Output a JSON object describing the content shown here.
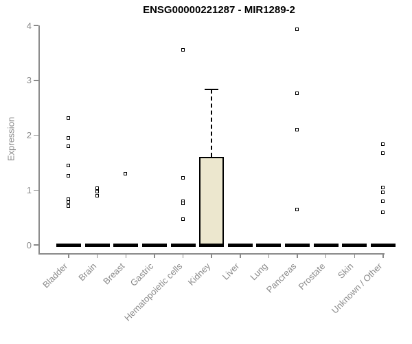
{
  "title": "ENSG00000221287 - MIR1289-2",
  "style": {
    "axis_color": "#8a8a8a",
    "label_color": "#8a8a8a",
    "title_color": "#000000",
    "box_fill": "#ece7ce",
    "box_border": "#000000",
    "point_color": "#000000",
    "background": "#ffffff"
  },
  "chart_data": {
    "type": "boxplot",
    "title": "ENSG00000221287 - MIR1289-2",
    "xlabel": "",
    "ylabel": "Expression",
    "ylim": [
      0,
      4
    ],
    "yticks": [
      0,
      1,
      2,
      3,
      4
    ],
    "grid": false,
    "legend": false,
    "categories": [
      "Bladder",
      "Brain",
      "Breast",
      "Gastric",
      "Hematopoietic cells",
      "Kidney",
      "Liver",
      "Lung",
      "Pancreas",
      "Prostate",
      "Skin",
      "Unknown / Other"
    ],
    "series": [
      {
        "category": "Bladder",
        "box": {
          "low": 0,
          "q1": 0,
          "median": 0,
          "q3": 0,
          "high": 0
        },
        "points": [
          2.31,
          1.94,
          1.79,
          1.44,
          1.25,
          0.83,
          0.78,
          0.7
        ]
      },
      {
        "category": "Brain",
        "box": {
          "low": 0,
          "q1": 0,
          "median": 0,
          "q3": 0,
          "high": 0
        },
        "points": [
          1.03,
          0.97,
          0.89
        ]
      },
      {
        "category": "Breast",
        "box": {
          "low": 0,
          "q1": 0,
          "median": 0,
          "q3": 0,
          "high": 0
        },
        "points": [
          1.29
        ]
      },
      {
        "category": "Gastric",
        "box": {
          "low": 0,
          "q1": 0,
          "median": 0,
          "q3": 0,
          "high": 0
        },
        "points": []
      },
      {
        "category": "Hematopoietic cells",
        "box": {
          "low": 0,
          "q1": 0,
          "median": 0,
          "q3": 0,
          "high": 0
        },
        "points": [
          3.55,
          1.22,
          0.79,
          0.75,
          0.46
        ]
      },
      {
        "category": "Kidney",
        "box": {
          "low": 0,
          "q1": 0,
          "median": 0,
          "q3": 1.61,
          "high": 2.83
        },
        "points": []
      },
      {
        "category": "Liver",
        "box": {
          "low": 0,
          "q1": 0,
          "median": 0,
          "q3": 0,
          "high": 0
        },
        "points": []
      },
      {
        "category": "Lung",
        "box": {
          "low": 0,
          "q1": 0,
          "median": 0,
          "q3": 0,
          "high": 0
        },
        "points": []
      },
      {
        "category": "Pancreas",
        "box": {
          "low": 0,
          "q1": 0,
          "median": 0,
          "q3": 0,
          "high": 0
        },
        "points": [
          3.93,
          2.76,
          2.09,
          0.64
        ]
      },
      {
        "category": "Prostate",
        "box": {
          "low": 0,
          "q1": 0,
          "median": 0,
          "q3": 0,
          "high": 0
        },
        "points": []
      },
      {
        "category": "Skin",
        "box": {
          "low": 0,
          "q1": 0,
          "median": 0,
          "q3": 0,
          "high": 0
        },
        "points": []
      },
      {
        "category": "Unknown / Other",
        "box": {
          "low": 0,
          "q1": 0,
          "median": 0,
          "q3": 0,
          "high": 0
        },
        "points": [
          1.83,
          1.67,
          1.04,
          0.95,
          0.79,
          0.59
        ]
      }
    ]
  }
}
